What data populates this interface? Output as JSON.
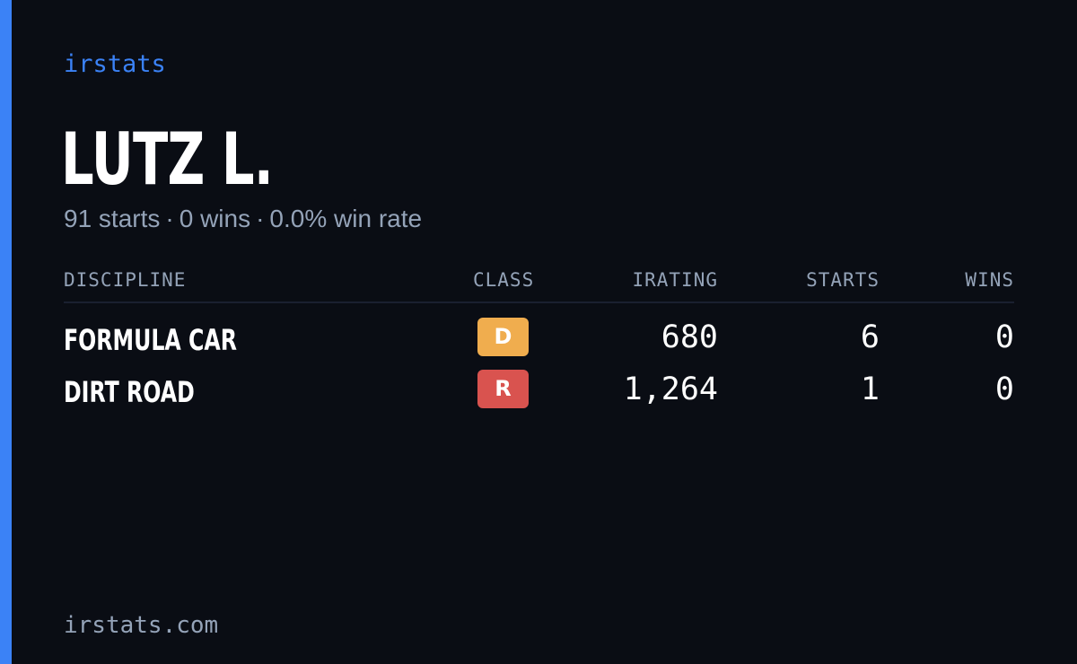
{
  "brand": "irstats",
  "driver": {
    "name": "LUTZ L.",
    "summary": {
      "starts": "91 starts",
      "wins": "0 wins",
      "win_rate": "0.0% win rate",
      "separator": "·"
    }
  },
  "table": {
    "headers": {
      "discipline": "DISCIPLINE",
      "class": "CLASS",
      "irating": "IRATING",
      "starts": "STARTS",
      "wins": "WINS"
    },
    "rows": [
      {
        "discipline": "FORMULA CAR",
        "class": "D",
        "class_color": "#f0ad4e",
        "irating": "680",
        "starts": "6",
        "wins": "0"
      },
      {
        "discipline": "DIRT ROAD",
        "class": "R",
        "class_color": "#d9534f",
        "irating": "1,264",
        "starts": "1",
        "wins": "0"
      }
    ]
  },
  "footer": "irstats.com",
  "colors": {
    "background": "#0a0d14",
    "accent": "#3b82f6",
    "muted_text": "#94a3b8"
  }
}
